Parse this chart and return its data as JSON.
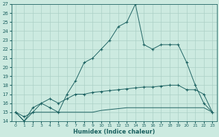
{
  "xlabel": "Humidex (Indice chaleur)",
  "xlim": [
    -0.5,
    23.5
  ],
  "ylim": [
    14,
    27
  ],
  "yticks": [
    14,
    15,
    16,
    17,
    18,
    19,
    20,
    21,
    22,
    23,
    24,
    25,
    26,
    27
  ],
  "xticks": [
    0,
    1,
    2,
    3,
    4,
    5,
    6,
    7,
    8,
    9,
    10,
    11,
    12,
    13,
    14,
    15,
    16,
    17,
    18,
    19,
    20,
    21,
    22,
    23
  ],
  "bg_color": "#cceae0",
  "grid_color": "#aacfc5",
  "line_color": "#1a6060",
  "curve_flat": {
    "x": [
      0,
      1,
      2,
      3,
      4,
      5,
      6,
      7,
      8,
      9,
      10,
      11,
      12,
      13,
      14,
      15,
      16,
      17,
      18,
      19,
      20,
      21,
      22,
      23
    ],
    "y": [
      15.0,
      14.0,
      15.0,
      15.0,
      15.0,
      15.0,
      15.0,
      15.0,
      15.0,
      15.0,
      15.2,
      15.3,
      15.4,
      15.5,
      15.5,
      15.5,
      15.5,
      15.5,
      15.5,
      15.5,
      15.5,
      15.5,
      15.5,
      15.0
    ]
  },
  "curve_mid": {
    "x": [
      0,
      1,
      2,
      3,
      4,
      5,
      6,
      7,
      8,
      9,
      10,
      11,
      12,
      13,
      14,
      15,
      16,
      17,
      18,
      19,
      20,
      21,
      22,
      23
    ],
    "y": [
      15.0,
      14.5,
      15.0,
      16.0,
      16.5,
      16.0,
      16.5,
      17.0,
      17.0,
      17.2,
      17.3,
      17.4,
      17.5,
      17.6,
      17.7,
      17.8,
      17.8,
      17.9,
      18.0,
      18.0,
      17.5,
      17.5,
      17.0,
      15.0
    ]
  },
  "curve_high": {
    "x": [
      0,
      1,
      2,
      3,
      4,
      5,
      6,
      7,
      8,
      9,
      10,
      11,
      12,
      13,
      14,
      15,
      16,
      17,
      18,
      19,
      20,
      21,
      22,
      23
    ],
    "y": [
      15.0,
      14.0,
      15.5,
      16.0,
      15.5,
      15.0,
      17.0,
      18.5,
      20.5,
      21.0,
      22.0,
      23.0,
      24.5,
      25.0,
      27.0,
      22.5,
      22.0,
      22.5,
      22.5,
      22.5,
      20.5,
      18.0,
      16.0,
      15.0
    ]
  }
}
